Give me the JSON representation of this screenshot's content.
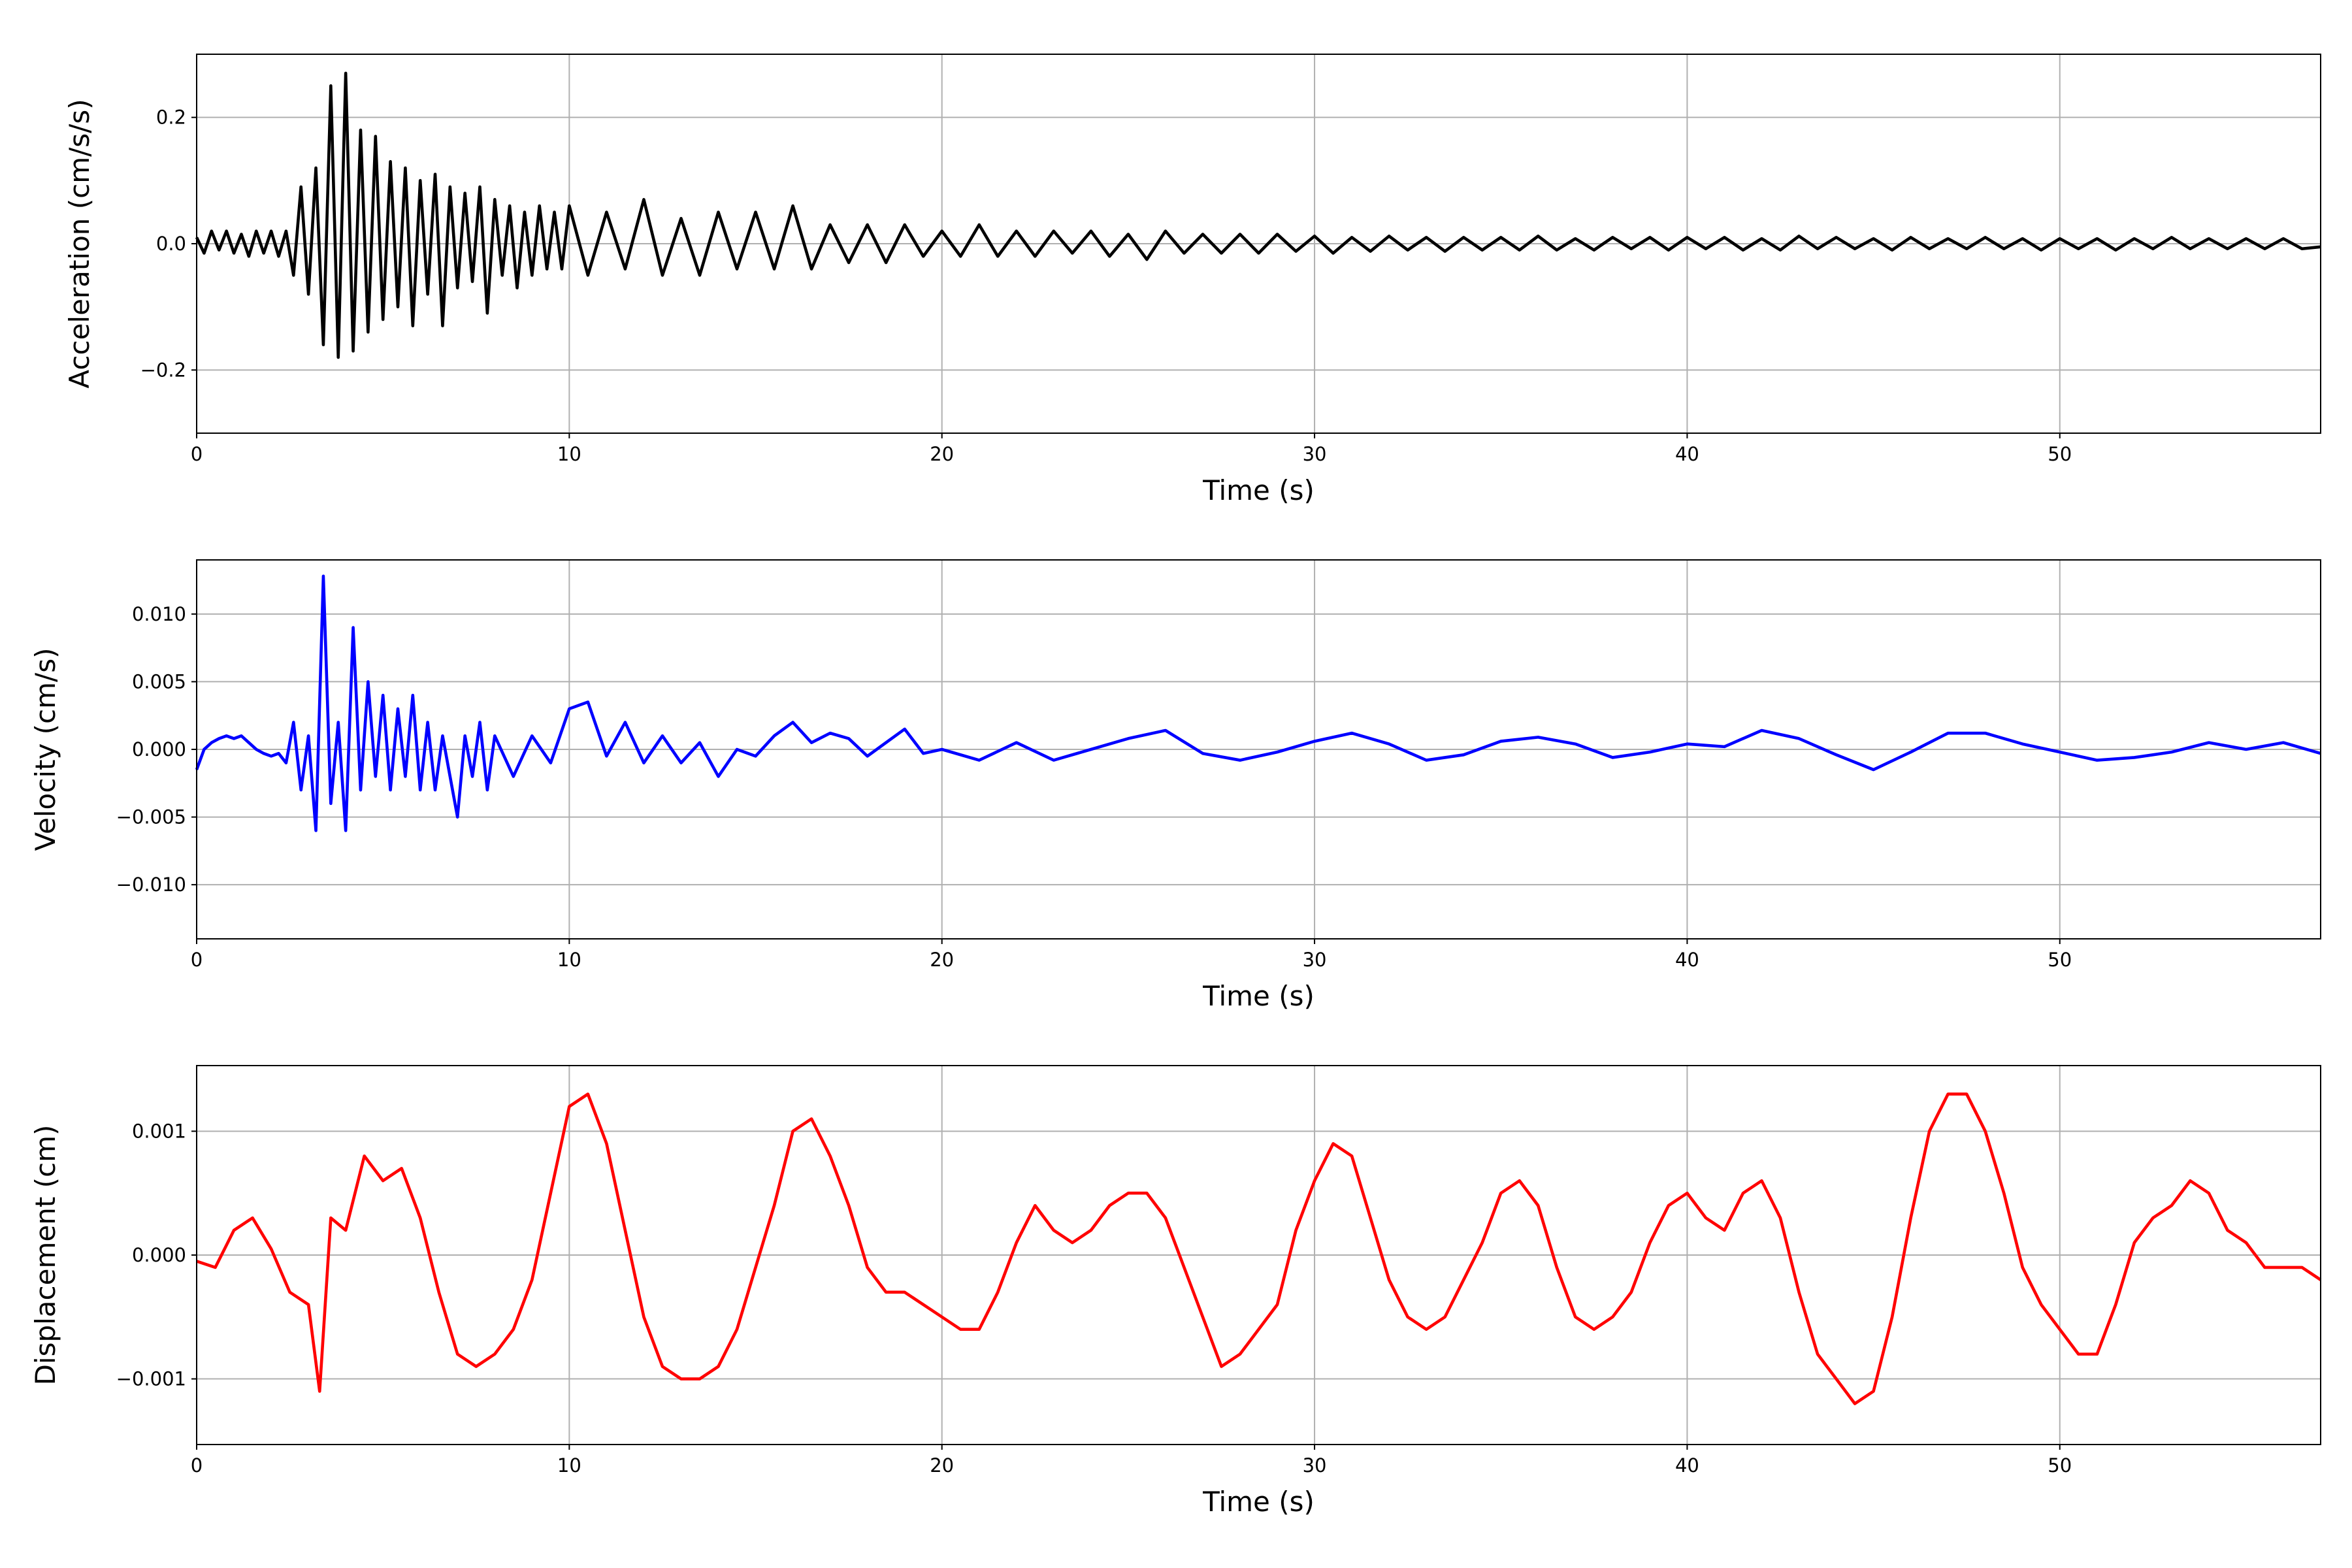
{
  "chart_data": [
    {
      "type": "line",
      "xlabel": "Time (s)",
      "ylabel": "Acceleration (cm/s/s)",
      "x": [
        0,
        0.2,
        0.4,
        0.6,
        0.8,
        1,
        1.2,
        1.4,
        1.6,
        1.8,
        2,
        2.2,
        2.4,
        2.6,
        2.8,
        3,
        3.2,
        3.4,
        3.6,
        3.8,
        4,
        4.2,
        4.4,
        4.6,
        4.8,
        5,
        5.2,
        5.4,
        5.6,
        5.8,
        6,
        6.2,
        6.4,
        6.6,
        6.8,
        7,
        7.2,
        7.4,
        7.6,
        7.8,
        8,
        8.2,
        8.4,
        8.6,
        8.8,
        9,
        9.2,
        9.4,
        9.6,
        9.8,
        10,
        10.5,
        11,
        11.5,
        12,
        12.5,
        13,
        13.5,
        14,
        14.5,
        15,
        15.5,
        16,
        16.5,
        17,
        17.5,
        18,
        18.5,
        19,
        19.5,
        20,
        20.5,
        21,
        21.5,
        22,
        22.5,
        23,
        23.5,
        24,
        24.5,
        25,
        25.5,
        26,
        26.5,
        27,
        27.5,
        28,
        28.5,
        29,
        29.5,
        30,
        30.5,
        31,
        31.5,
        32,
        32.5,
        33,
        33.5,
        34,
        34.5,
        35,
        35.5,
        36,
        36.5,
        37,
        37.5,
        38,
        38.5,
        39,
        39.5,
        40,
        40.5,
        41,
        41.5,
        42,
        42.5,
        43,
        43.5,
        44,
        44.5,
        45,
        45.5,
        46,
        46.5,
        47,
        47.5,
        48,
        48.5,
        49,
        49.5,
        50,
        50.5,
        51,
        51.5,
        52,
        52.5,
        53,
        53.5,
        54,
        54.5,
        55,
        55.5,
        56,
        56.5,
        57
      ],
      "series": [
        {
          "color": "#000000",
          "values": [
            0.01,
            -0.015,
            0.02,
            -0.01,
            0.02,
            -0.015,
            0.015,
            -0.02,
            0.02,
            -0.015,
            0.02,
            -0.02,
            0.02,
            -0.05,
            0.09,
            -0.08,
            0.12,
            -0.16,
            0.25,
            -0.18,
            0.27,
            -0.17,
            0.18,
            -0.14,
            0.17,
            -0.12,
            0.13,
            -0.1,
            0.12,
            -0.13,
            0.1,
            -0.08,
            0.11,
            -0.13,
            0.09,
            -0.07,
            0.08,
            -0.06,
            0.09,
            -0.11,
            0.07,
            -0.05,
            0.06,
            -0.07,
            0.05,
            -0.05,
            0.06,
            -0.04,
            0.05,
            -0.04,
            0.06,
            -0.05,
            0.05,
            -0.04,
            0.07,
            -0.05,
            0.04,
            -0.05,
            0.05,
            -0.04,
            0.05,
            -0.04,
            0.06,
            -0.04,
            0.03,
            -0.03,
            0.03,
            -0.03,
            0.03,
            -0.02,
            0.02,
            -0.02,
            0.03,
            -0.02,
            0.02,
            -0.02,
            0.02,
            -0.015,
            0.02,
            -0.02,
            0.015,
            -0.025,
            0.02,
            -0.015,
            0.015,
            -0.015,
            0.015,
            -0.015,
            0.015,
            -0.012,
            0.012,
            -0.015,
            0.01,
            -0.012,
            0.012,
            -0.01,
            0.01,
            -0.012,
            0.01,
            -0.01,
            0.01,
            -0.01,
            0.012,
            -0.01,
            0.008,
            -0.01,
            0.01,
            -0.008,
            0.01,
            -0.01,
            0.01,
            -0.008,
            0.01,
            -0.01,
            0.008,
            -0.01,
            0.012,
            -0.008,
            0.01,
            -0.008,
            0.008,
            -0.01,
            0.01,
            -0.008,
            0.008,
            -0.008,
            0.01,
            -0.008,
            0.008,
            -0.01,
            0.008,
            -0.008,
            0.008,
            -0.01,
            0.008,
            -0.008,
            0.01,
            -0.008,
            0.008,
            -0.008,
            0.008,
            -0.008,
            0.008,
            -0.008,
            -0.005
          ]
        }
      ],
      "xlim": [
        0,
        57
      ],
      "ylim": [
        -0.3,
        0.3
      ],
      "xticks": [
        0,
        10,
        20,
        30,
        40,
        50
      ],
      "yticks": [
        {
          "value": -0.2,
          "label": "−0.2"
        },
        {
          "value": 0,
          "label": "0.0"
        },
        {
          "value": 0.2,
          "label": "0.2"
        }
      ],
      "grid": true
    },
    {
      "type": "line",
      "xlabel": "Time (s)",
      "ylabel": "Velocity (cm/s)",
      "x": [
        0,
        0.2,
        0.4,
        0.6,
        0.8,
        1,
        1.2,
        1.4,
        1.6,
        1.8,
        2,
        2.2,
        2.4,
        2.6,
        2.8,
        3,
        3.2,
        3.4,
        3.6,
        3.8,
        4,
        4.2,
        4.4,
        4.6,
        4.8,
        5,
        5.2,
        5.4,
        5.6,
        5.8,
        6,
        6.2,
        6.4,
        6.6,
        6.8,
        7,
        7.2,
        7.4,
        7.6,
        7.8,
        8,
        8.5,
        9,
        9.5,
        10,
        10.5,
        11,
        11.5,
        12,
        12.5,
        13,
        13.5,
        14,
        14.5,
        15,
        15.5,
        16,
        16.5,
        17,
        17.5,
        18,
        18.5,
        19,
        19.5,
        20,
        21,
        22,
        23,
        24,
        25,
        26,
        27,
        28,
        29,
        30,
        31,
        32,
        33,
        34,
        35,
        36,
        37,
        38,
        39,
        40,
        41,
        42,
        43,
        44,
        45,
        46,
        47,
        48,
        49,
        50,
        51,
        52,
        53,
        54,
        55,
        56,
        57
      ],
      "series": [
        {
          "color": "#0000ff",
          "values": [
            -0.0015,
            0,
            0.0005,
            0.0008,
            0.001,
            0.0008,
            0.001,
            0.0005,
            0,
            -0.0003,
            -0.0005,
            -0.0003,
            -0.001,
            0.002,
            -0.003,
            0.001,
            -0.006,
            0.0128,
            -0.004,
            0.002,
            -0.006,
            0.009,
            -0.003,
            0.005,
            -0.002,
            0.004,
            -0.003,
            0.003,
            -0.002,
            0.004,
            -0.003,
            0.002,
            -0.003,
            0.001,
            -0.002,
            -0.005,
            0.001,
            -0.002,
            0.002,
            -0.003,
            0.001,
            -0.002,
            0.001,
            -0.001,
            0.003,
            0.0035,
            -0.0005,
            0.002,
            -0.001,
            0.001,
            -0.001,
            0.0005,
            -0.002,
            0,
            -0.0005,
            0.001,
            0.002,
            0.0005,
            0.0012,
            0.0008,
            -0.0005,
            0.0005,
            0.0015,
            -0.0003,
            0,
            -0.0008,
            0.0005,
            -0.0008,
            0,
            0.0008,
            0.0014,
            -0.0003,
            -0.0008,
            -0.0002,
            0.0006,
            0.0012,
            0.0004,
            -0.0008,
            -0.0004,
            0.0006,
            0.0009,
            0.0004,
            -0.0006,
            -0.0002,
            0.0004,
            0.0002,
            0.0014,
            0.0008,
            -0.0004,
            -0.0015,
            -0.0002,
            0.0012,
            0.0012,
            0.0004,
            -0.0002,
            -0.0008,
            -0.0006,
            -0.0002,
            0.0005,
            0,
            0.0005,
            -0.0003
          ]
        }
      ],
      "xlim": [
        0,
        57
      ],
      "ylim": [
        -0.014,
        0.014
      ],
      "xticks": [
        0,
        10,
        20,
        30,
        40,
        50
      ],
      "yticks": [
        {
          "value": -0.01,
          "label": "−0.010"
        },
        {
          "value": -0.005,
          "label": "−0.005"
        },
        {
          "value": 0,
          "label": "0.000"
        },
        {
          "value": 0.005,
          "label": "0.005"
        },
        {
          "value": 0.01,
          "label": "0.010"
        }
      ],
      "grid": true
    },
    {
      "type": "line",
      "xlabel": "Time (s)",
      "ylabel": "Displacement (cm)",
      "x": [
        0,
        0.5,
        1,
        1.5,
        2,
        2.5,
        3,
        3.3,
        3.6,
        4,
        4.5,
        5,
        5.5,
        6,
        6.5,
        7,
        7.5,
        8,
        8.5,
        9,
        9.5,
        10,
        10.5,
        11,
        11.5,
        12,
        12.5,
        13,
        13.5,
        14,
        14.5,
        15,
        15.5,
        16,
        16.5,
        17,
        17.5,
        18,
        18.5,
        19,
        19.5,
        20,
        20.5,
        21,
        21.5,
        22,
        22.5,
        23,
        23.5,
        24,
        24.5,
        25,
        25.5,
        26,
        26.5,
        27,
        27.5,
        28,
        28.5,
        29,
        29.5,
        30,
        30.5,
        31,
        31.5,
        32,
        32.5,
        33,
        33.5,
        34,
        34.5,
        35,
        35.5,
        36,
        36.5,
        37,
        37.5,
        38,
        38.5,
        39,
        39.5,
        40,
        40.5,
        41,
        41.5,
        42,
        42.5,
        43,
        43.5,
        44,
        44.5,
        45,
        45.5,
        46,
        46.5,
        47,
        47.5,
        48,
        48.5,
        49,
        49.5,
        50,
        50.5,
        51,
        51.5,
        52,
        52.5,
        53,
        53.5,
        54,
        54.5,
        55,
        55.5,
        56,
        56.5,
        57
      ],
      "series": [
        {
          "color": "#ff0000",
          "values": [
            -5e-05,
            -0.0001,
            0.0002,
            0.0003,
            5e-05,
            -0.0003,
            -0.0004,
            -0.0011,
            0.0003,
            0.0002,
            0.0008,
            0.0006,
            0.0007,
            0.0003,
            -0.0003,
            -0.0008,
            -0.0009,
            -0.0008,
            -0.0006,
            -0.0002,
            0.0005,
            0.0012,
            0.0013,
            0.0009,
            0.0002,
            -0.0005,
            -0.0009,
            -0.001,
            -0.001,
            -0.0009,
            -0.0006,
            -0.0001,
            0.0004,
            0.001,
            0.0011,
            0.0008,
            0.0004,
            -0.0001,
            -0.0003,
            -0.0003,
            -0.0004,
            -0.0005,
            -0.0006,
            -0.0006,
            -0.0003,
            0.0001,
            0.0004,
            0.0002,
            0.0001,
            0.0002,
            0.0004,
            0.0005,
            0.0005,
            0.0003,
            -0.0001,
            -0.0005,
            -0.0009,
            -0.0008,
            -0.0006,
            -0.0004,
            0.0002,
            0.0006,
            0.0009,
            0.0008,
            0.0003,
            -0.0002,
            -0.0005,
            -0.0006,
            -0.0005,
            -0.0002,
            0.0001,
            0.0005,
            0.0006,
            0.0004,
            -0.0001,
            -0.0005,
            -0.0006,
            -0.0005,
            -0.0003,
            0.0001,
            0.0004,
            0.0005,
            0.0003,
            0.0002,
            0.0005,
            0.0006,
            0.0003,
            -0.0003,
            -0.0008,
            -0.001,
            -0.0012,
            -0.0011,
            -0.0005,
            0.0003,
            0.001,
            0.0013,
            0.0013,
            0.001,
            0.0005,
            -0.0001,
            -0.0004,
            -0.0006,
            -0.0008,
            -0.0008,
            -0.0004,
            0.0001,
            0.0003,
            0.0004,
            0.0006,
            0.0005,
            0.0002,
            0.0001,
            -0.0001,
            -0.0001,
            -0.0001,
            -0.0002
          ]
        }
      ],
      "xlim": [
        0,
        57
      ],
      "ylim": [
        -0.00153,
        0.00153
      ],
      "xticks": [
        0,
        10,
        20,
        30,
        40,
        50
      ],
      "yticks": [
        {
          "value": -0.001,
          "label": "−0.001"
        },
        {
          "value": 0,
          "label": "0.000"
        },
        {
          "value": 0.001,
          "label": "0.001"
        }
      ],
      "grid": true
    }
  ]
}
